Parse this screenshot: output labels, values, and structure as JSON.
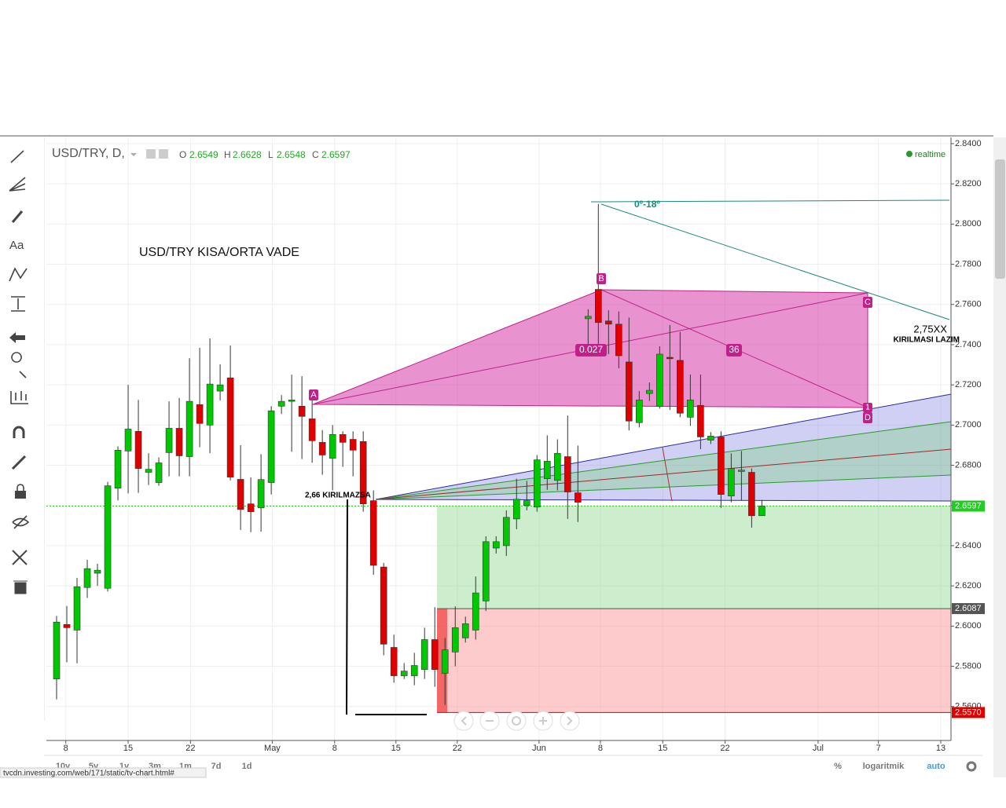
{
  "app": {
    "symbol": "USD/TRY, D,",
    "ohlc_labels": [
      "O",
      "H",
      "L",
      "C"
    ],
    "realtime": "realtime",
    "toolbar_text": "Aa",
    "timeframes": [
      "10y",
      "5y",
      "1y",
      "3m",
      "1m",
      "7d",
      "1d"
    ],
    "percent": "%",
    "log": "logaritmik",
    "auto": "auto",
    "status_url": "tvcdn.investing.com/web/171/static/tv-chart.html#"
  },
  "chart_data": {
    "type": "candlestick",
    "title": "USD/TRY  KISA/ORTA VADE",
    "annotations": {
      "break_low": "2,66 KIRILMAZSA",
      "target_value": "2,75XX",
      "target_text": "KIRILMASI LAZIM",
      "angle": "0º-18º",
      "ratio_ab": "0.027",
      "ratio_bd": "36"
    },
    "pattern_points": [
      "A",
      "B",
      "C",
      "1",
      "D"
    ],
    "colors": {
      "up": "#00c800",
      "down": "#e00000"
    },
    "open": [
      2.5737,
      2.6008,
      2.598,
      2.6192,
      2.6263,
      2.6188,
      2.6686,
      2.6871,
      2.6969,
      2.6765,
      2.6714,
      2.6863,
      2.6984,
      2.6843,
      2.7102,
      2.7,
      2.7169,
      2.7235,
      2.673,
      2.6608,
      2.6588,
      2.6714,
      2.7094,
      2.7118,
      2.7094,
      2.7031,
      2.6914,
      2.6835,
      2.6953,
      2.6929,
      2.6918,
      2.6624,
      2.6294,
      2.5894,
      2.5753,
      2.5753,
      2.5784,
      2.5933,
      2.5765,
      2.5871,
      2.5941,
      2.598,
      2.6125,
      2.6388,
      2.64,
      2.6533,
      2.66,
      2.6592,
      2.6733,
      2.6725,
      2.6843,
      2.6663,
      2.7529,
      2.7675,
      2.7518,
      2.7502,
      2.7314,
      2.7012,
      2.7157,
      2.7094,
      2.7337,
      2.7322,
      2.7039,
      2.7098,
      2.6925,
      2.6941,
      2.6647,
      2.6769,
      2.6765,
      2.6549
    ],
    "high": [
      2.605,
      2.61,
      2.624,
      2.633,
      2.631,
      2.6717,
      2.6894,
      2.72,
      2.7125,
      2.686,
      2.6839,
      2.7118,
      2.7135,
      2.7333,
      2.7384,
      2.7431,
      2.7302,
      2.7396,
      2.69,
      2.674,
      2.6855,
      2.7094,
      2.7149,
      2.7251,
      2.7243,
      2.7176,
      2.6975,
      2.7,
      2.6969,
      2.6969,
      2.6969,
      2.6675,
      2.6314,
      2.5957,
      2.5816,
      2.5867,
      2.5992,
      2.6094,
      2.5941,
      2.6098,
      2.6047,
      2.6247,
      2.6447,
      2.6447,
      2.6576,
      2.6733,
      2.6722,
      2.6851,
      2.6949,
      2.6929,
      2.7047,
      2.6898,
      2.7576,
      2.81,
      2.7571,
      2.7565,
      2.7535,
      2.7169,
      2.7212,
      2.7392,
      2.7498,
      2.7463,
      2.7251,
      2.7251,
      2.6965,
      2.6969,
      2.6859,
      2.6871,
      2.6784,
      2.6628
    ],
    "low": [
      2.5635,
      2.582,
      2.5815,
      2.614,
      2.62,
      2.6172,
      2.6625,
      2.666,
      2.6663,
      2.6702,
      2.6698,
      2.6745,
      2.6745,
      2.6745,
      2.689,
      2.686,
      2.7122,
      2.6725,
      2.6478,
      2.6467,
      2.647,
      2.6655,
      2.7055,
      2.6867,
      2.6831,
      2.6812,
      2.6753,
      2.6675,
      2.6792,
      2.6745,
      2.6569,
      2.6255,
      2.5855,
      2.5718,
      2.5737,
      2.5706,
      2.5737,
      2.5698,
      2.5608,
      2.58,
      2.5918,
      2.5933,
      2.6075,
      2.6361,
      2.6349,
      2.6482,
      2.6576,
      2.6569,
      2.6678,
      2.6675,
      2.6533,
      2.6518,
      2.7384,
      2.7384,
      2.7353,
      2.7282,
      2.6973,
      2.6988,
      2.712,
      2.7082,
      2.7075,
      2.7039,
      2.6996,
      2.688,
      2.6906,
      2.6588,
      2.6616,
      2.6624,
      2.649,
      2.6548
    ],
    "close": [
      2.602,
      2.5992,
      2.6196,
      2.6286,
      2.6278,
      2.6698,
      2.6875,
      2.698,
      2.6784,
      2.678,
      2.6812,
      2.6984,
      2.6847,
      2.7118,
      2.7008,
      2.7204,
      2.72,
      2.6741,
      2.658,
      2.6569,
      2.6729,
      2.7071,
      2.7118,
      2.7125,
      2.7043,
      2.6922,
      2.6851,
      2.6953,
      2.6914,
      2.6875,
      2.6608,
      2.6302,
      2.591,
      2.5753,
      2.5776,
      2.5804,
      2.5933,
      2.5784,
      2.5882,
      2.5992,
      2.6012,
      2.6165,
      2.642,
      2.642,
      2.6541,
      2.6631,
      2.6624,
      2.6827,
      2.682,
      2.6859,
      2.6667,
      2.6616,
      2.7541,
      2.751,
      2.7502,
      2.7345,
      2.702,
      2.7125,
      2.7173,
      2.7353,
      2.733,
      2.7059,
      2.7125,
      2.6941,
      2.6945,
      2.6655,
      2.6784,
      2.6776,
      2.6549,
      2.6597
    ],
    "xlim": [
      -1,
      87.5
    ],
    "xticks": [
      {
        "value": 0.9,
        "label": "8"
      },
      {
        "value": 7,
        "label": "15"
      },
      {
        "value": 13.1,
        "label": "22"
      },
      {
        "value": 21.1,
        "label": "May"
      },
      {
        "value": 27.2,
        "label": "8"
      },
      {
        "value": 33.2,
        "label": "15"
      },
      {
        "value": 39.2,
        "label": "22"
      },
      {
        "value": 47.2,
        "label": "Jun"
      },
      {
        "value": 53.2,
        "label": "8"
      },
      {
        "value": 59.3,
        "label": "15"
      },
      {
        "value": 65.4,
        "label": "22"
      },
      {
        "value": 74.5,
        "label": "Jul"
      },
      {
        "value": 80.4,
        "label": "7"
      },
      {
        "value": 86.5,
        "label": "13"
      }
    ],
    "ylim": [
      2.5431,
      2.8431
    ],
    "yticks": [
      {
        "value": 2.56,
        "label": "2.5600"
      },
      {
        "value": 2.58,
        "label": "2.5800"
      },
      {
        "value": 2.6,
        "label": "2.6000"
      },
      {
        "value": 2.62,
        "label": "2.6200"
      },
      {
        "value": 2.64,
        "label": "2.6400"
      },
      {
        "value": 2.66,
        "label": "2.6600"
      },
      {
        "value": 2.68,
        "label": "2.6800"
      },
      {
        "value": 2.7,
        "label": "2.7000"
      },
      {
        "value": 2.72,
        "label": "2.7200"
      },
      {
        "value": 2.74,
        "label": "2.7400"
      },
      {
        "value": 2.76,
        "label": "2.7600"
      },
      {
        "value": 2.78,
        "label": "2.7800"
      },
      {
        "value": 2.8,
        "label": "2.8000"
      },
      {
        "value": 2.82,
        "label": "2.8200"
      },
      {
        "value": 2.84,
        "label": "2.8400"
      }
    ],
    "grid": true,
    "price_labels": [
      {
        "value": 2.6597,
        "label": "2.6597",
        "color": "#22cc22"
      },
      {
        "value": 2.6087,
        "label": "2.6087",
        "color": "#555555"
      },
      {
        "value": 2.557,
        "label": "2.5570",
        "color": "#e00000"
      }
    ]
  }
}
